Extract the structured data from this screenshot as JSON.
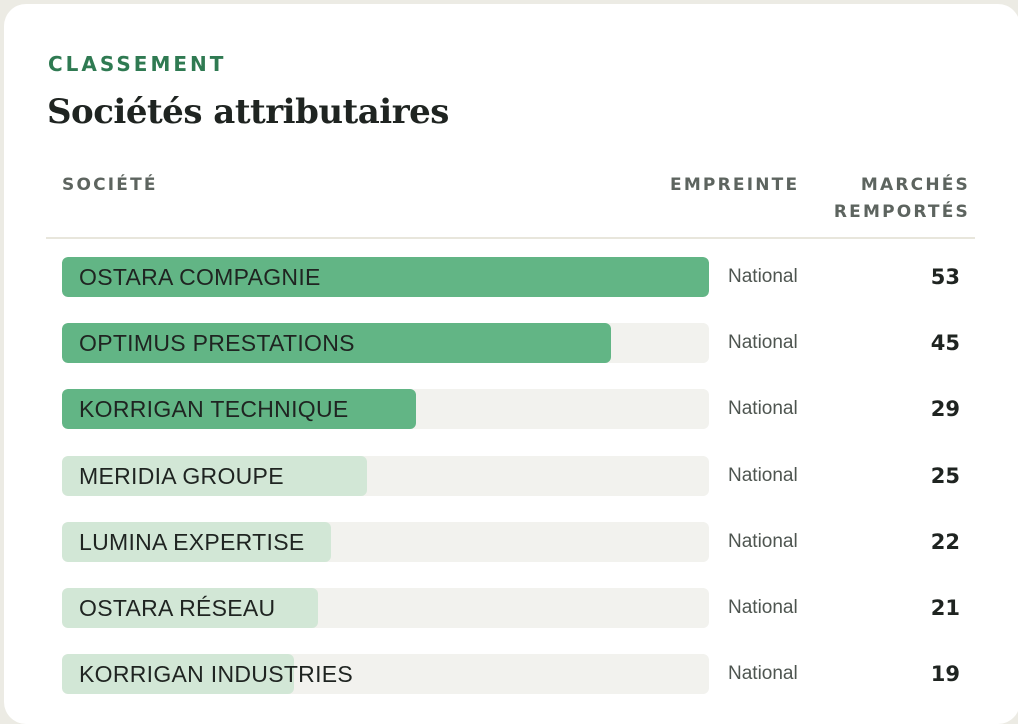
{
  "header": {
    "eyebrow": "CLASSEMENT",
    "title": "Sociétés attributaires"
  },
  "table": {
    "columns": {
      "societe": "SOCIÉTÉ",
      "empreinte": "EMPREINTE",
      "marches_line1": "MARCHÉS",
      "marches_line2": "REMPORTÉS"
    },
    "rows": [
      {
        "name": "OSTARA COMPAGNIE",
        "scope": "National",
        "count": "53",
        "bar_share": 1.0,
        "bar_style": "strong"
      },
      {
        "name": "OPTIMUS PRESTATIONS",
        "scope": "National",
        "count": "45",
        "bar_share": 0.849,
        "bar_style": "strong"
      },
      {
        "name": "KORRIGAN TECHNIQUE",
        "scope": "National",
        "count": "29",
        "bar_share": 0.547,
        "bar_style": "strong"
      },
      {
        "name": "MERIDIA GROUPE",
        "scope": "National",
        "count": "25",
        "bar_share": 0.472,
        "bar_style": "light"
      },
      {
        "name": "LUMINA EXPERTISE",
        "scope": "National",
        "count": "22",
        "bar_share": 0.415,
        "bar_style": "light"
      },
      {
        "name": "OSTARA RÉSEAU",
        "scope": "National",
        "count": "21",
        "bar_share": 0.396,
        "bar_style": "light"
      },
      {
        "name": "KORRIGAN INDUSTRIES",
        "scope": "National",
        "count": "19",
        "bar_share": 0.358,
        "bar_style": "light"
      }
    ]
  },
  "colors": {
    "accent": "#2f7a52",
    "bar_strong": "#62b585",
    "bar_light": "#d2e7d6",
    "track": "#f2f2ee"
  }
}
